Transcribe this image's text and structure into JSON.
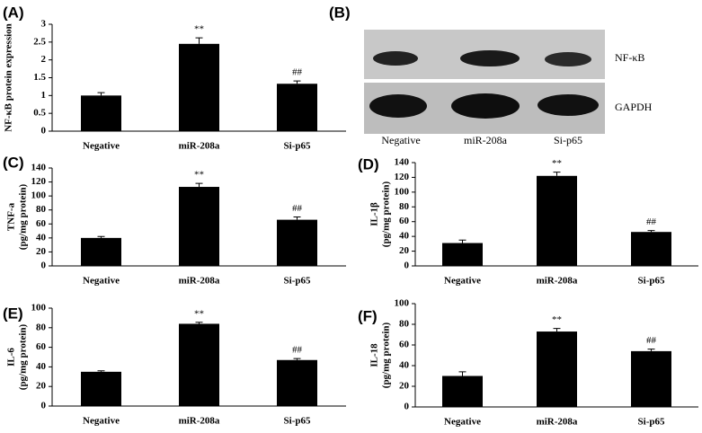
{
  "chart_data": [
    {
      "type": "bar",
      "panel": "(A)",
      "ylabel": [
        "NF-κB protein expression"
      ],
      "categories": [
        "Negative",
        "miR-208a",
        "Si-p65"
      ],
      "values": [
        1.0,
        2.45,
        1.33
      ],
      "errors": [
        0.08,
        0.17,
        0.08
      ],
      "annotations": [
        null,
        "**",
        "##"
      ],
      "color": "#000000",
      "ylim": [
        0,
        3
      ],
      "yticks": [
        0,
        0.5,
        1,
        1.5,
        2,
        2.5,
        3
      ]
    },
    {
      "type": "bar",
      "panel": "(C)",
      "ylabel": [
        "TNF-a",
        "(pg/mg protein)"
      ],
      "categories": [
        "Negative",
        "miR-208a",
        "Si-p65"
      ],
      "values": [
        40,
        113,
        66
      ],
      "errors": [
        2,
        5,
        4
      ],
      "annotations": [
        null,
        "**",
        "##"
      ],
      "color": "#000000",
      "ylim": [
        0,
        140
      ],
      "yticks": [
        0,
        20,
        40,
        60,
        80,
        100,
        120,
        140
      ]
    },
    {
      "type": "bar",
      "panel": "(D)",
      "ylabel": [
        "IL-1β",
        "(pg/mg protein)"
      ],
      "categories": [
        "Negative",
        "miR-208a",
        "Si-p65"
      ],
      "values": [
        31,
        122,
        46
      ],
      "errors": [
        4,
        5,
        2
      ],
      "annotations": [
        null,
        "**",
        "##"
      ],
      "color": "#000000",
      "ylim": [
        0,
        140
      ],
      "yticks": [
        0,
        20,
        40,
        60,
        80,
        100,
        120,
        140
      ]
    },
    {
      "type": "bar",
      "panel": "(E)",
      "ylabel": [
        "IL-6",
        "(pg/mg protein)"
      ],
      "categories": [
        "Negative",
        "miR-208a",
        "Si-p65"
      ],
      "values": [
        35,
        84,
        47
      ],
      "errors": [
        1,
        1.5,
        1.5
      ],
      "annotations": [
        null,
        "**",
        "##"
      ],
      "color": "#000000",
      "ylim": [
        0,
        100
      ],
      "yticks": [
        0,
        20,
        40,
        60,
        80,
        100
      ]
    },
    {
      "type": "bar",
      "panel": "(F)",
      "ylabel": [
        "IL-18",
        "(pg/mg protein)"
      ],
      "categories": [
        "Negative",
        "miR-208a",
        "Si-p65"
      ],
      "values": [
        30,
        73,
        54
      ],
      "errors": [
        4,
        3,
        2
      ],
      "annotations": [
        null,
        "**",
        "##"
      ],
      "color": "#000000",
      "ylim": [
        0,
        100
      ],
      "yticks": [
        0,
        20,
        40,
        60,
        80,
        100
      ]
    }
  ],
  "blot": {
    "panel": "(B)",
    "bands": [
      "NF-κB",
      "GAPDH"
    ],
    "lanes": [
      "Negative",
      "miR-208a",
      "Si-p65"
    ]
  }
}
